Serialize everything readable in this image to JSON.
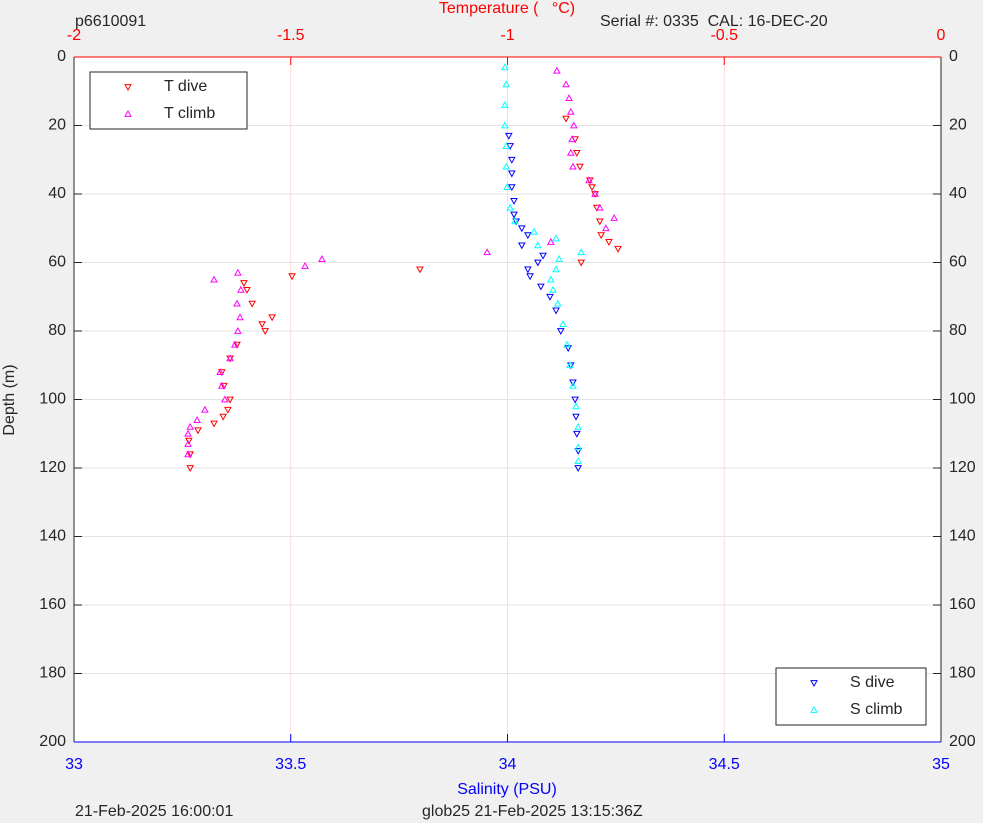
{
  "chart_data": {
    "type": "scatter",
    "title": "Temperature (   °C)",
    "top_left_label": "p6610091",
    "top_right_label": "Serial #: 0335  CAL: 16-DEC-20",
    "xlabel": "Salinity (PSU)",
    "ylabel": "Depth (m)",
    "footer_left": "21-Feb-2025 16:00:01",
    "footer_right": "glob25 21-Feb-2025 13:15:36Z",
    "xlim": [
      33,
      35
    ],
    "xticks": [
      33,
      33.5,
      34,
      34.5,
      35
    ],
    "x_color": "#0000ff",
    "x2lim": [
      -2,
      0
    ],
    "x2ticks": [
      -2,
      -1.5,
      -1,
      -0.5,
      0
    ],
    "x2_color": "#ff0000",
    "ylim": [
      0,
      200
    ],
    "yticks": [
      0,
      20,
      40,
      60,
      80,
      100,
      120,
      140,
      160,
      180,
      200
    ],
    "y_reversed": true,
    "grid": true,
    "series": [
      {
        "name": "T dive",
        "color": "#ff0000",
        "marker": "down",
        "axis": "x2",
        "legend": "upper left",
        "y": [
          18,
          24,
          28,
          32,
          36,
          38,
          40,
          44,
          48,
          52,
          54,
          56,
          60,
          62,
          64,
          66,
          68,
          72,
          76,
          78,
          80,
          84,
          88,
          92,
          96,
          100,
          103,
          105,
          107,
          109,
          112,
          116,
          120
        ],
        "x": [
          -0.865,
          -0.844,
          -0.84,
          -0.833,
          -0.81,
          -0.805,
          -0.798,
          -0.794,
          -0.787,
          -0.784,
          -0.766,
          -0.745,
          -0.83,
          -1.202,
          -1.497,
          -1.608,
          -1.601,
          -1.589,
          -1.543,
          -1.566,
          -1.559,
          -1.624,
          -1.64,
          -1.659,
          -1.654,
          -1.64,
          -1.645,
          -1.656,
          -1.677,
          -1.714,
          -1.735,
          -1.732,
          -1.732
        ]
      },
      {
        "name": "T climb",
        "color": "#ff00ff",
        "marker": "up",
        "axis": "x2",
        "legend": "upper left",
        "y": [
          4,
          8,
          12,
          16,
          20,
          24,
          28,
          32,
          36,
          40,
          44,
          47,
          50,
          54,
          57,
          59,
          61,
          63,
          65,
          68,
          72,
          76,
          80,
          84,
          88,
          92,
          96,
          100,
          103,
          106,
          108,
          110,
          113,
          116
        ],
        "x": [
          -0.886,
          -0.865,
          -0.858,
          -0.854,
          -0.847,
          -0.851,
          -0.854,
          -0.849,
          -0.812,
          -0.798,
          -0.787,
          -0.754,
          -0.773,
          -0.9,
          -1.047,
          -1.428,
          -1.467,
          -1.622,
          -1.677,
          -1.615,
          -1.624,
          -1.617,
          -1.622,
          -1.629,
          -1.64,
          -1.663,
          -1.659,
          -1.652,
          -1.698,
          -1.716,
          -1.732,
          -1.737,
          -1.737,
          -1.737
        ]
      },
      {
        "name": "S dive",
        "color": "#0000ff",
        "marker": "down",
        "axis": "x",
        "legend": "lower right",
        "y": [
          23,
          26,
          30,
          34,
          38,
          42,
          46,
          48,
          50,
          52,
          55,
          58,
          60,
          62,
          64,
          67,
          70,
          74,
          80,
          85,
          90,
          95,
          100,
          105,
          110,
          115,
          120
        ],
        "x": [
          34.003,
          34.006,
          34.01,
          34.01,
          34.01,
          34.015,
          34.015,
          34.02,
          34.033,
          34.047,
          34.033,
          34.082,
          34.07,
          34.047,
          34.052,
          34.077,
          34.098,
          34.112,
          34.123,
          34.14,
          34.146,
          34.151,
          34.156,
          34.158,
          34.16,
          34.163,
          34.163
        ]
      },
      {
        "name": "S climb",
        "color": "#00ffff",
        "marker": "up",
        "axis": "x",
        "legend": "lower right",
        "y": [
          3,
          8,
          14,
          20,
          26,
          32,
          38,
          44,
          48,
          51,
          53,
          55,
          57,
          59,
          62,
          65,
          68,
          72,
          78,
          84,
          90,
          96,
          102,
          108,
          114,
          118
        ],
        "x": [
          33.994,
          33.997,
          33.994,
          33.994,
          33.997,
          33.997,
          33.999,
          34.006,
          34.017,
          34.061,
          34.112,
          34.07,
          34.17,
          34.119,
          34.112,
          34.1,
          34.105,
          34.116,
          34.128,
          34.137,
          34.144,
          34.151,
          34.158,
          34.163,
          34.163,
          34.163
        ]
      }
    ]
  }
}
